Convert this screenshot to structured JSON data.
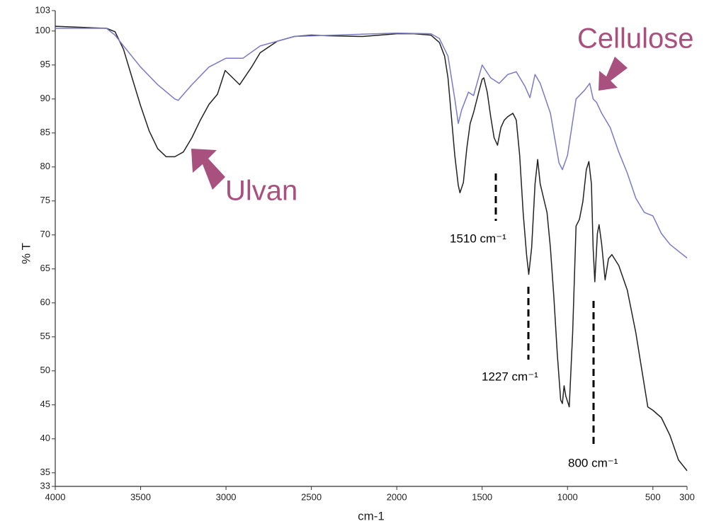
{
  "chart_data": {
    "type": "line",
    "xlabel": "cm-1",
    "ylabel": "% T",
    "xlim": [
      4000,
      300
    ],
    "ylim": [
      33,
      103
    ],
    "xticks": [
      4000,
      3500,
      3000,
      2500,
      2000,
      1500,
      1000,
      500,
      300
    ],
    "yticks": [
      33,
      35,
      40,
      45,
      50,
      55,
      60,
      65,
      70,
      75,
      80,
      85,
      90,
      95,
      100,
      103
    ],
    "annotations": [
      "Ulvan",
      "Cellulose",
      "1510 cm⁻¹",
      "1227 cm⁻¹",
      "800 cm⁻¹"
    ],
    "series": [
      {
        "color": "#222222",
        "x": [
          4000,
          3700,
          3650,
          3600,
          3550,
          3500,
          3450,
          3400,
          3350,
          3300,
          3250,
          3200,
          3150,
          3100,
          3050,
          3005,
          2920,
          2850,
          2800,
          2700,
          2600,
          2500,
          2400,
          2200,
          2100,
          2000,
          1900,
          1800,
          1750,
          1720,
          1700,
          1680,
          1660,
          1640,
          1630,
          1610,
          1590,
          1570,
          1550,
          1520,
          1500,
          1490,
          1470,
          1450,
          1430,
          1410,
          1390,
          1370,
          1350,
          1320,
          1300,
          1280,
          1260,
          1240,
          1227,
          1210,
          1190,
          1175,
          1160,
          1140,
          1120,
          1100,
          1080,
          1060,
          1040,
          1030,
          1020,
          1010,
          990,
          970,
          950,
          930,
          910,
          890,
          875,
          860,
          850,
          840,
          825,
          815,
          800,
          780,
          760,
          740,
          700,
          650,
          600,
          560,
          530,
          500,
          450,
          400,
          350,
          300
        ],
        "values": [
          100.7,
          100.4,
          99.9,
          97.3,
          93.1,
          89,
          85.3,
          82.7,
          81.5,
          81.5,
          82.2,
          84.3,
          86.9,
          89.2,
          90.7,
          94.2,
          92.1,
          94.7,
          96.8,
          98.5,
          99.2,
          99.4,
          99.3,
          99.2,
          99.4,
          99.6,
          99.6,
          99.4,
          98.3,
          96.3,
          93.1,
          87.4,
          81.7,
          77.3,
          76.2,
          77.7,
          82.7,
          86.4,
          88,
          91,
          92.9,
          93.1,
          91,
          87.4,
          84.3,
          83.2,
          85.8,
          86.9,
          87.4,
          87.9,
          86.9,
          81.7,
          73.3,
          67.1,
          64.2,
          68.1,
          77.5,
          81.1,
          77.5,
          75.4,
          73.3,
          68.1,
          60.8,
          52.5,
          45.7,
          45.2,
          47.8,
          46.3,
          44.7,
          55.6,
          71.3,
          72.3,
          74.9,
          79.6,
          80.8,
          77.5,
          68.1,
          63.1,
          70.2,
          71.5,
          68.6,
          63.4,
          66.5,
          67.1,
          65.5,
          61.9,
          55.6,
          49.4,
          44.7,
          44.2,
          43.1,
          40.5,
          36.9,
          35.3
        ]
      },
      {
        "color": "#7a7ac8",
        "x": [
          4000,
          3700,
          3650,
          3600,
          3500,
          3400,
          3300,
          3280,
          3200,
          3100,
          3000,
          2900,
          2800,
          2600,
          2000,
          1800,
          1750,
          1700,
          1660,
          1640,
          1620,
          1580,
          1550,
          1500,
          1450,
          1400,
          1350,
          1300,
          1250,
          1220,
          1190,
          1160,
          1100,
          1050,
          1030,
          1000,
          950,
          900,
          870,
          850,
          830,
          800,
          750,
          700,
          650,
          600,
          550,
          500,
          450,
          400,
          350,
          300
        ],
        "values": [
          100.4,
          100.4,
          99.4,
          97.8,
          94.7,
          92.1,
          90,
          89.8,
          92.1,
          94.7,
          96,
          96,
          97.8,
          99.2,
          99.7,
          99.6,
          98.9,
          96.3,
          90,
          86.4,
          88.4,
          91,
          90.5,
          95,
          93.1,
          92.3,
          93.6,
          94,
          91.9,
          90.2,
          93.6,
          92.3,
          87.9,
          80.6,
          79.6,
          81.7,
          90,
          91.3,
          92.3,
          90,
          89.5,
          87.9,
          85.8,
          82.2,
          79.1,
          75.4,
          73.3,
          72.8,
          70.2,
          68.6,
          67.6,
          66.6
        ]
      }
    ]
  }
}
